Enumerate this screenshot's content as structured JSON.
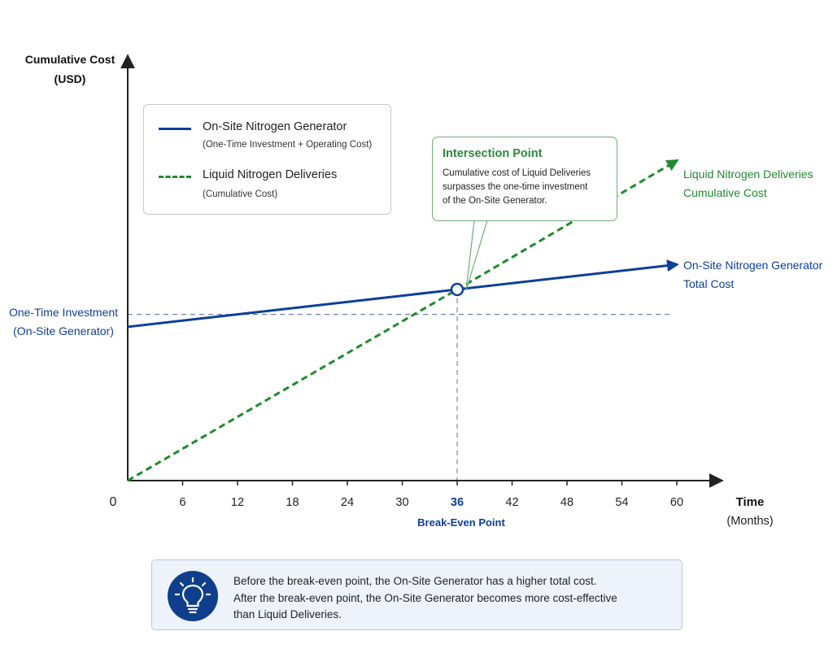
{
  "chart_data": {
    "type": "line",
    "x_ticks": [
      0,
      6,
      12,
      18,
      24,
      30,
      36,
      42,
      48,
      54,
      60
    ],
    "highlighted_tick": 36,
    "xlabel": "Time",
    "xlabel_unit": "(Months)",
    "ylabel_line1": "Cumulative Cost",
    "ylabel_line2": "(USD)",
    "series": [
      {
        "key": "generator",
        "name": "On-Site Nitrogen Generator",
        "legend_sub": "(One-Time Investment + Operating Cost)",
        "end_label": [
          "On-Site Nitrogen Generator",
          "Total Cost"
        ],
        "style": "solid",
        "color": "#0d3f98",
        "x": [
          0,
          36,
          60
        ],
        "y": [
          0.37,
          0.46,
          0.52
        ]
      },
      {
        "key": "liquid",
        "name": "Liquid Nitrogen Deliveries",
        "legend_sub": "(Cumulative Cost)",
        "end_label": [
          "Liquid Nitrogen Deliveries",
          "Cumulative Cost"
        ],
        "style": "dashed",
        "color": "#1f8a2e",
        "x": [
          0,
          36,
          60
        ],
        "y": [
          0,
          0.46,
          0.77
        ]
      }
    ],
    "one_time_investment": {
      "label": [
        "One-Time Investment",
        "(On-Site Generator)"
      ],
      "y": 0.4
    },
    "intersection": {
      "x": 36,
      "y": 0.46
    },
    "break_even_label": "Break-Even Point",
    "xlim": [
      0,
      60
    ],
    "ylim": [
      0,
      1
    ],
    "grid": false
  },
  "callout": {
    "title": "Intersection Point",
    "lines": [
      "Cumulative cost of Liquid Deliveries",
      "surpasses the one-time investment",
      "of the On-Site Generator."
    ]
  },
  "tip": {
    "icon": "lightbulb-icon",
    "lines": [
      "Before the break-even point, the On-Site Generator has a higher total cost.",
      "After the break-even point, the On-Site Generator becomes more cost-effective",
      "than Liquid Deliveries."
    ]
  },
  "colors": {
    "blue": "#0d3f98",
    "green": "#1f8a2e",
    "axis": "#222222",
    "reference": "#6c7fae"
  }
}
